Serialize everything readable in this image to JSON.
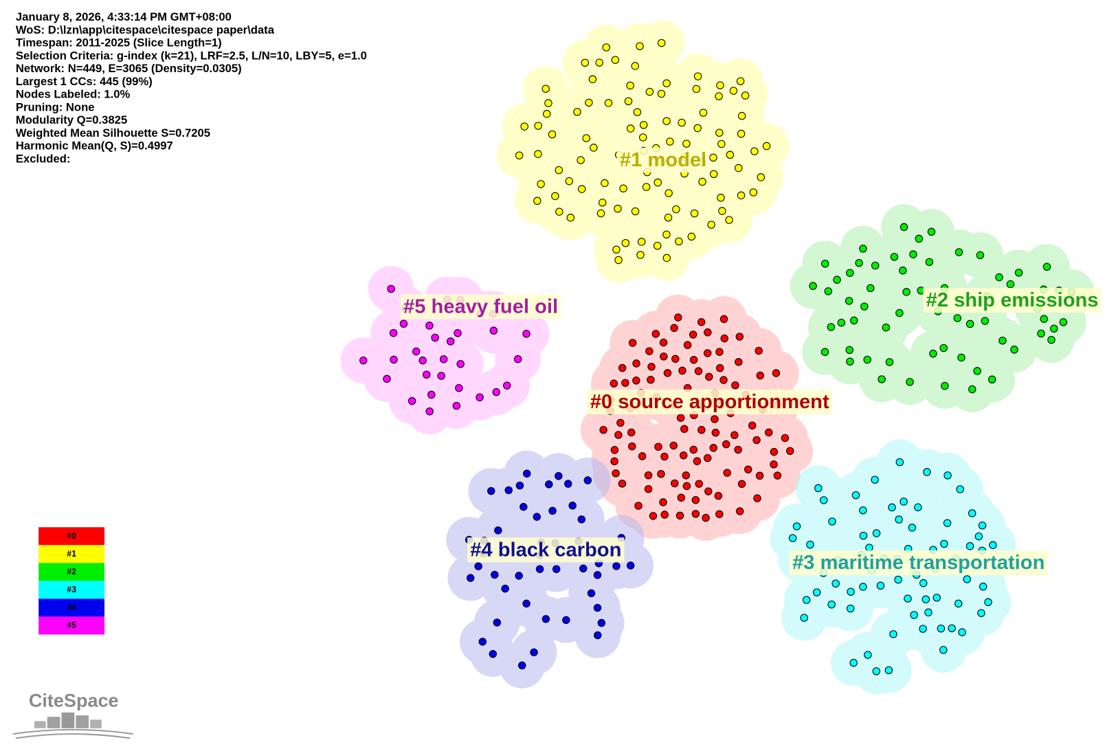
{
  "header": {
    "lines": [
      "January 8, 2026, 4:33:14 PM GMT+08:00",
      "WoS: D:\\lzn\\app\\citespace\\citespace paper\\data",
      "Timespan: 2011-2025 (Slice Length=1)",
      "Selection Criteria: g-index (k=21), LRF=2.5, L/N=10, LBY=5, e=1.0",
      "Network: N=449, E=3065 (Density=0.0305)",
      "Largest 1 CCs: 445 (99%)",
      "Nodes Labeled: 1.0%",
      "Pruning: None",
      "Modularity Q=0.3825",
      "Weighted Mean Silhouette S=0.7205",
      "Harmonic Mean(Q, S)=0.4997",
      "Excluded:"
    ]
  },
  "clusters": [
    {
      "label": "#0 source apportionment"
    },
    {
      "label": "#1 model"
    },
    {
      "label": "#2 ship emissions"
    },
    {
      "label": "#3 maritime transportation"
    },
    {
      "label": "#4 black carbon"
    },
    {
      "label": "#5 heavy fuel oil"
    }
  ],
  "legend": [
    "#0",
    "#1",
    "#2",
    "#3",
    "#4",
    "#5"
  ],
  "logo": "CiteSpace"
}
